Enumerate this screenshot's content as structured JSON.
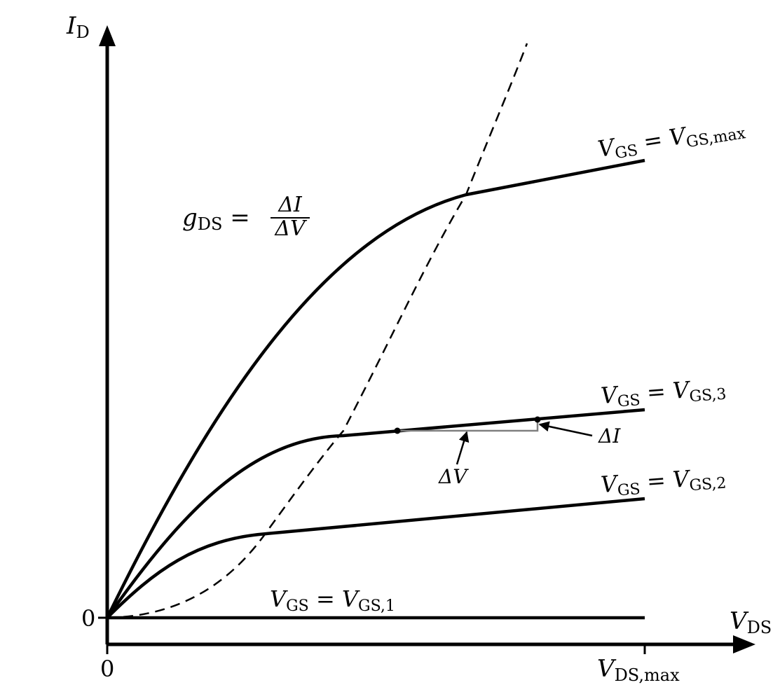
{
  "axes": {
    "y_var": "I",
    "y_sub": "D",
    "x_var": "V",
    "x_sub": "DS",
    "y_origin_label": "0",
    "x_origin_label": "0",
    "x_max_var": "V",
    "x_max_sub": "DS,max"
  },
  "curves": [
    {
      "var": "V",
      "sub": "GS",
      "eq": " = ",
      "rhs_var": "V",
      "rhs_sub": "GS,max"
    },
    {
      "var": "V",
      "sub": "GS",
      "eq": " = ",
      "rhs_var": "V",
      "rhs_sub": "GS,3"
    },
    {
      "var": "V",
      "sub": "GS",
      "eq": " = ",
      "rhs_var": "V",
      "rhs_sub": "GS,2"
    },
    {
      "var": "V",
      "sub": "GS",
      "eq": " = ",
      "rhs_var": "V",
      "rhs_sub": "GS,1"
    }
  ],
  "formula": {
    "var": "g",
    "sub": "DS",
    "eq": " = ",
    "num": "ΔI",
    "den": "ΔV"
  },
  "annotations": {
    "delta_i": "ΔI",
    "delta_v": "ΔV"
  },
  "colors": {
    "curve": "#000000",
    "slope_marker": "#808080"
  }
}
